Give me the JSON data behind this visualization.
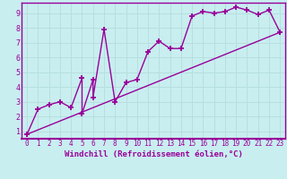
{
  "bg_color": "#c8eef0",
  "line_color": "#990099",
  "grid_color": "#b8dfe0",
  "xlabel": "Windchill (Refroidissement éolien,°C)",
  "xlim": [
    -0.5,
    23.5
  ],
  "ylim": [
    0.5,
    9.7
  ],
  "xticks": [
    0,
    1,
    2,
    3,
    4,
    5,
    6,
    7,
    8,
    9,
    10,
    11,
    12,
    13,
    14,
    15,
    16,
    17,
    18,
    19,
    20,
    21,
    22,
    23
  ],
  "yticks": [
    1,
    2,
    3,
    4,
    5,
    6,
    7,
    8,
    9
  ],
  "line1_x": [
    0,
    1,
    2,
    3,
    4,
    5,
    5,
    6,
    6,
    7,
    8,
    9,
    10,
    11,
    12,
    13,
    14,
    15,
    16,
    17,
    18,
    19,
    20,
    21,
    22,
    23
  ],
  "line1_y": [
    0.8,
    2.5,
    2.8,
    3.0,
    2.6,
    4.6,
    2.2,
    4.5,
    3.3,
    7.9,
    3.0,
    4.3,
    4.5,
    6.4,
    7.1,
    6.6,
    6.6,
    8.8,
    9.1,
    9.0,
    9.1,
    9.4,
    9.2,
    8.9,
    9.2,
    7.7
  ],
  "line2_x": [
    0,
    23
  ],
  "line2_y": [
    0.8,
    7.7
  ],
  "marker": "+",
  "markersize": 5,
  "marker_edgewidth": 1.3,
  "linewidth": 1.0,
  "tick_fontsize": 5.5,
  "xlabel_fontsize": 6.5
}
